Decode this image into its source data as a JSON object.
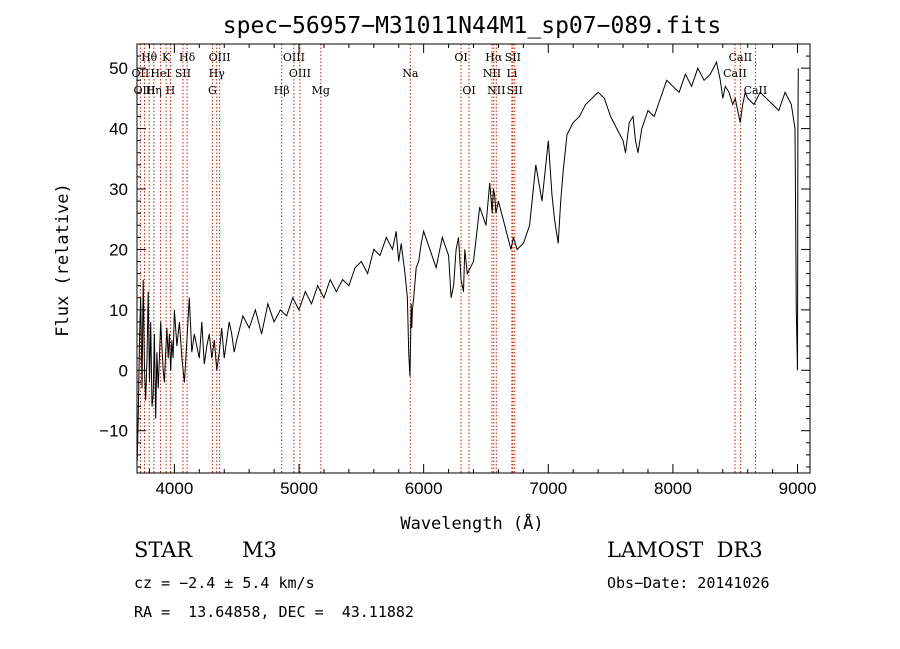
{
  "chart_data": {
    "type": "line",
    "title": "spec−56957−M31011N44M1_sp07−089.fits",
    "xlabel": "Wavelength (Å)",
    "ylabel": "Flux (relative)",
    "xlim": [
      3700,
      9100
    ],
    "ylim": [
      -17,
      54
    ],
    "xticks": [
      4000,
      5000,
      6000,
      7000,
      8000,
      9000
    ],
    "yticks": [
      -10,
      0,
      10,
      20,
      30,
      40,
      50
    ],
    "ytick_labels": [
      "−10",
      "0",
      "10",
      "20",
      "30",
      "40",
      "50"
    ],
    "series": [
      {
        "color": "#000000",
        "x": [
          3702,
          3710,
          3720,
          3730,
          3740,
          3750,
          3760,
          3770,
          3780,
          3790,
          3800,
          3810,
          3820,
          3830,
          3840,
          3850,
          3860,
          3870,
          3880,
          3890,
          3900,
          3910,
          3920,
          3930,
          3940,
          3950,
          3960,
          3970,
          3980,
          3990,
          4000,
          4020,
          4040,
          4060,
          4080,
          4100,
          4120,
          4140,
          4160,
          4180,
          4200,
          4220,
          4240,
          4260,
          4280,
          4300,
          4320,
          4340,
          4360,
          4380,
          4400,
          4420,
          4440,
          4460,
          4480,
          4500,
          4550,
          4600,
          4650,
          4700,
          4750,
          4800,
          4850,
          4900,
          4950,
          5000,
          5050,
          5100,
          5150,
          5200,
          5250,
          5300,
          5350,
          5400,
          5450,
          5500,
          5550,
          5600,
          5650,
          5700,
          5750,
          5780,
          5800,
          5820,
          5850,
          5870,
          5880,
          5890,
          5895,
          5900,
          5905,
          5910,
          5920,
          5940,
          5960,
          5980,
          6000,
          6050,
          6100,
          6150,
          6200,
          6220,
          6240,
          6260,
          6280,
          6300,
          6320,
          6330,
          6350,
          6400,
          6450,
          6500,
          6530,
          6550,
          6560,
          6570,
          6580,
          6600,
          6650,
          6700,
          6720,
          6750,
          6800,
          6850,
          6900,
          6950,
          7000,
          7030,
          7050,
          7080,
          7100,
          7120,
          7150,
          7200,
          7250,
          7300,
          7350,
          7400,
          7450,
          7500,
          7550,
          7600,
          7620,
          7650,
          7680,
          7700,
          7720,
          7750,
          7800,
          7850,
          7900,
          7950,
          8000,
          8050,
          8100,
          8150,
          8200,
          8250,
          8300,
          8350,
          8380,
          8400,
          8420,
          8450,
          8480,
          8500,
          8520,
          8540,
          8560,
          8580,
          8600,
          8650,
          8700,
          8750,
          8800,
          8850,
          8900,
          8950,
          8980,
          8990,
          9000,
          9003,
          9006
        ],
        "y": [
          -15,
          -8,
          5,
          12,
          -3,
          15,
          0,
          -5,
          2,
          13,
          -2,
          8,
          -6,
          -4,
          6,
          -8,
          3,
          -3,
          2,
          8,
          4,
          0,
          -2,
          3,
          7,
          2,
          6,
          0,
          5,
          2,
          10,
          4,
          8,
          2,
          -2,
          5,
          12,
          3,
          6,
          4,
          2,
          8,
          1,
          4,
          6,
          2,
          5,
          0,
          3,
          7,
          2,
          5,
          8,
          6,
          3,
          5,
          9,
          7,
          10,
          6,
          11,
          8,
          10,
          9,
          12,
          10,
          13,
          11,
          14,
          12,
          15,
          13,
          15,
          14,
          17,
          18,
          16,
          20,
          19,
          22,
          20,
          23,
          18,
          21,
          16,
          12,
          3,
          -1,
          5,
          11,
          7,
          10,
          12,
          17,
          18,
          21,
          23,
          20,
          17,
          22,
          19,
          12,
          14,
          20,
          22,
          15,
          13,
          20,
          16,
          18,
          27,
          24,
          31,
          26,
          30,
          29,
          26,
          28,
          24,
          20,
          22,
          20,
          21,
          24,
          34,
          28,
          38,
          29,
          25,
          21,
          28,
          33,
          39,
          41,
          42,
          44,
          45,
          46,
          45,
          42,
          40,
          38,
          36,
          41,
          42,
          38,
          36,
          40,
          43,
          42,
          45,
          48,
          47,
          46,
          49,
          47,
          50,
          48,
          49,
          51,
          48,
          45,
          47,
          46,
          44,
          45,
          43,
          41,
          44,
          46,
          45,
          44,
          46,
          45,
          44,
          43,
          46,
          44,
          40,
          10,
          0,
          40,
          50
        ]
      }
    ],
    "line_labels": [
      {
        "text": "Hθ",
        "row": 0,
        "lines": [
          3798
        ]
      },
      {
        "text": "K",
        "row": 0,
        "lines": [
          3934
        ]
      },
      {
        "text": "Hδ",
        "row": 0,
        "lines": [
          4102
        ]
      },
      {
        "text": "OIII",
        "row": 0,
        "lines": [
          4363
        ]
      },
      {
        "text": "OIII",
        "row": 0,
        "lines": [
          4959
        ]
      },
      {
        "text": "OI",
        "row": 0,
        "lines": [
          6300
        ]
      },
      {
        "text": "Hα",
        "row": 0,
        "lines": [
          6563
        ]
      },
      {
        "text": "SII",
        "row": 0,
        "lines": [
          6716
        ]
      },
      {
        "text": "CaII",
        "row": 0,
        "lines": [
          8542
        ]
      },
      {
        "text": "OII",
        "row": 1,
        "lines": [
          3727
        ]
      },
      {
        "text": "HeI",
        "row": 1,
        "lines": [
          3889
        ]
      },
      {
        "text": "SII",
        "row": 1,
        "lines": [
          4069
        ]
      },
      {
        "text": "Hγ",
        "row": 1,
        "lines": [
          4340
        ]
      },
      {
        "text": "OIII",
        "row": 1,
        "lines": [
          5007
        ]
      },
      {
        "text": "Na",
        "row": 1,
        "lines": [
          5893
        ]
      },
      {
        "text": "NII",
        "row": 1,
        "lines": [
          6548
        ]
      },
      {
        "text": "Li",
        "row": 1,
        "lines": [
          6708
        ]
      },
      {
        "text": "CaII",
        "row": 1,
        "lines": [
          8498
        ]
      },
      {
        "text": "OIII",
        "row": 2,
        "lines": [
          3760
        ]
      },
      {
        "text": "Hη",
        "row": 2,
        "lines": [
          3835
        ]
      },
      {
        "text": "H",
        "row": 2,
        "lines": [
          3968
        ]
      },
      {
        "text": "G",
        "row": 2,
        "lines": [
          4305
        ]
      },
      {
        "text": "Hβ",
        "row": 2,
        "lines": [
          4861
        ]
      },
      {
        "text": "Mg",
        "row": 2,
        "lines": [
          5175
        ]
      },
      {
        "text": "OI",
        "row": 2,
        "lines": [
          6364
        ]
      },
      {
        "text": "NII",
        "row": 2,
        "lines": [
          6583
        ]
      },
      {
        "text": "SII",
        "row": 2,
        "lines": [
          6731
        ]
      },
      {
        "text": "CaII",
        "row": 2,
        "lines": [
          8662
        ]
      }
    ],
    "vlines": [
      3727,
      3760,
      3798,
      3835,
      3889,
      3934,
      3968,
      4069,
      4102,
      4305,
      4340,
      4363,
      4861,
      4959,
      5007,
      5175,
      5893,
      6300,
      6364,
      6548,
      6563,
      6583,
      6708,
      6716,
      6731,
      8498,
      8542,
      8662
    ],
    "vline_color": "#cc2200"
  },
  "info": {
    "object_class": "STAR",
    "subclass": "M3",
    "survey": "LAMOST  DR3",
    "redshift_text": "cz = −2.4 ± 5.4 km/s",
    "obs_date": "Obs−Date: 20141026",
    "coords": "RA =  13.64858, DEC =  43.11882"
  }
}
